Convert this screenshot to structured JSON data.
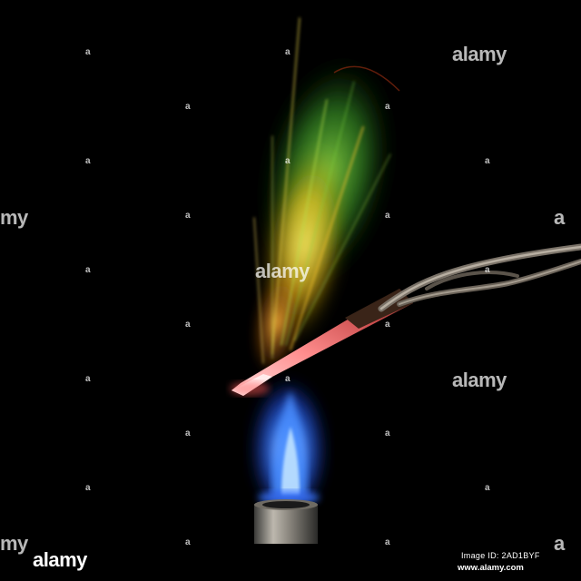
{
  "watermark": {
    "brand": "alamy",
    "partial_left": "my",
    "partial_right": "a"
  },
  "footer": {
    "brand": "alamy",
    "image_id": "Image ID: 2AD1BYF",
    "url": "www.alamy.com"
  },
  "colors": {
    "background": "#000000",
    "flame_blue": "#2a6bff",
    "spark_green": "#5fd23c",
    "spark_yellow": "#f2e23a",
    "hot_metal": "#ff6a6a"
  }
}
